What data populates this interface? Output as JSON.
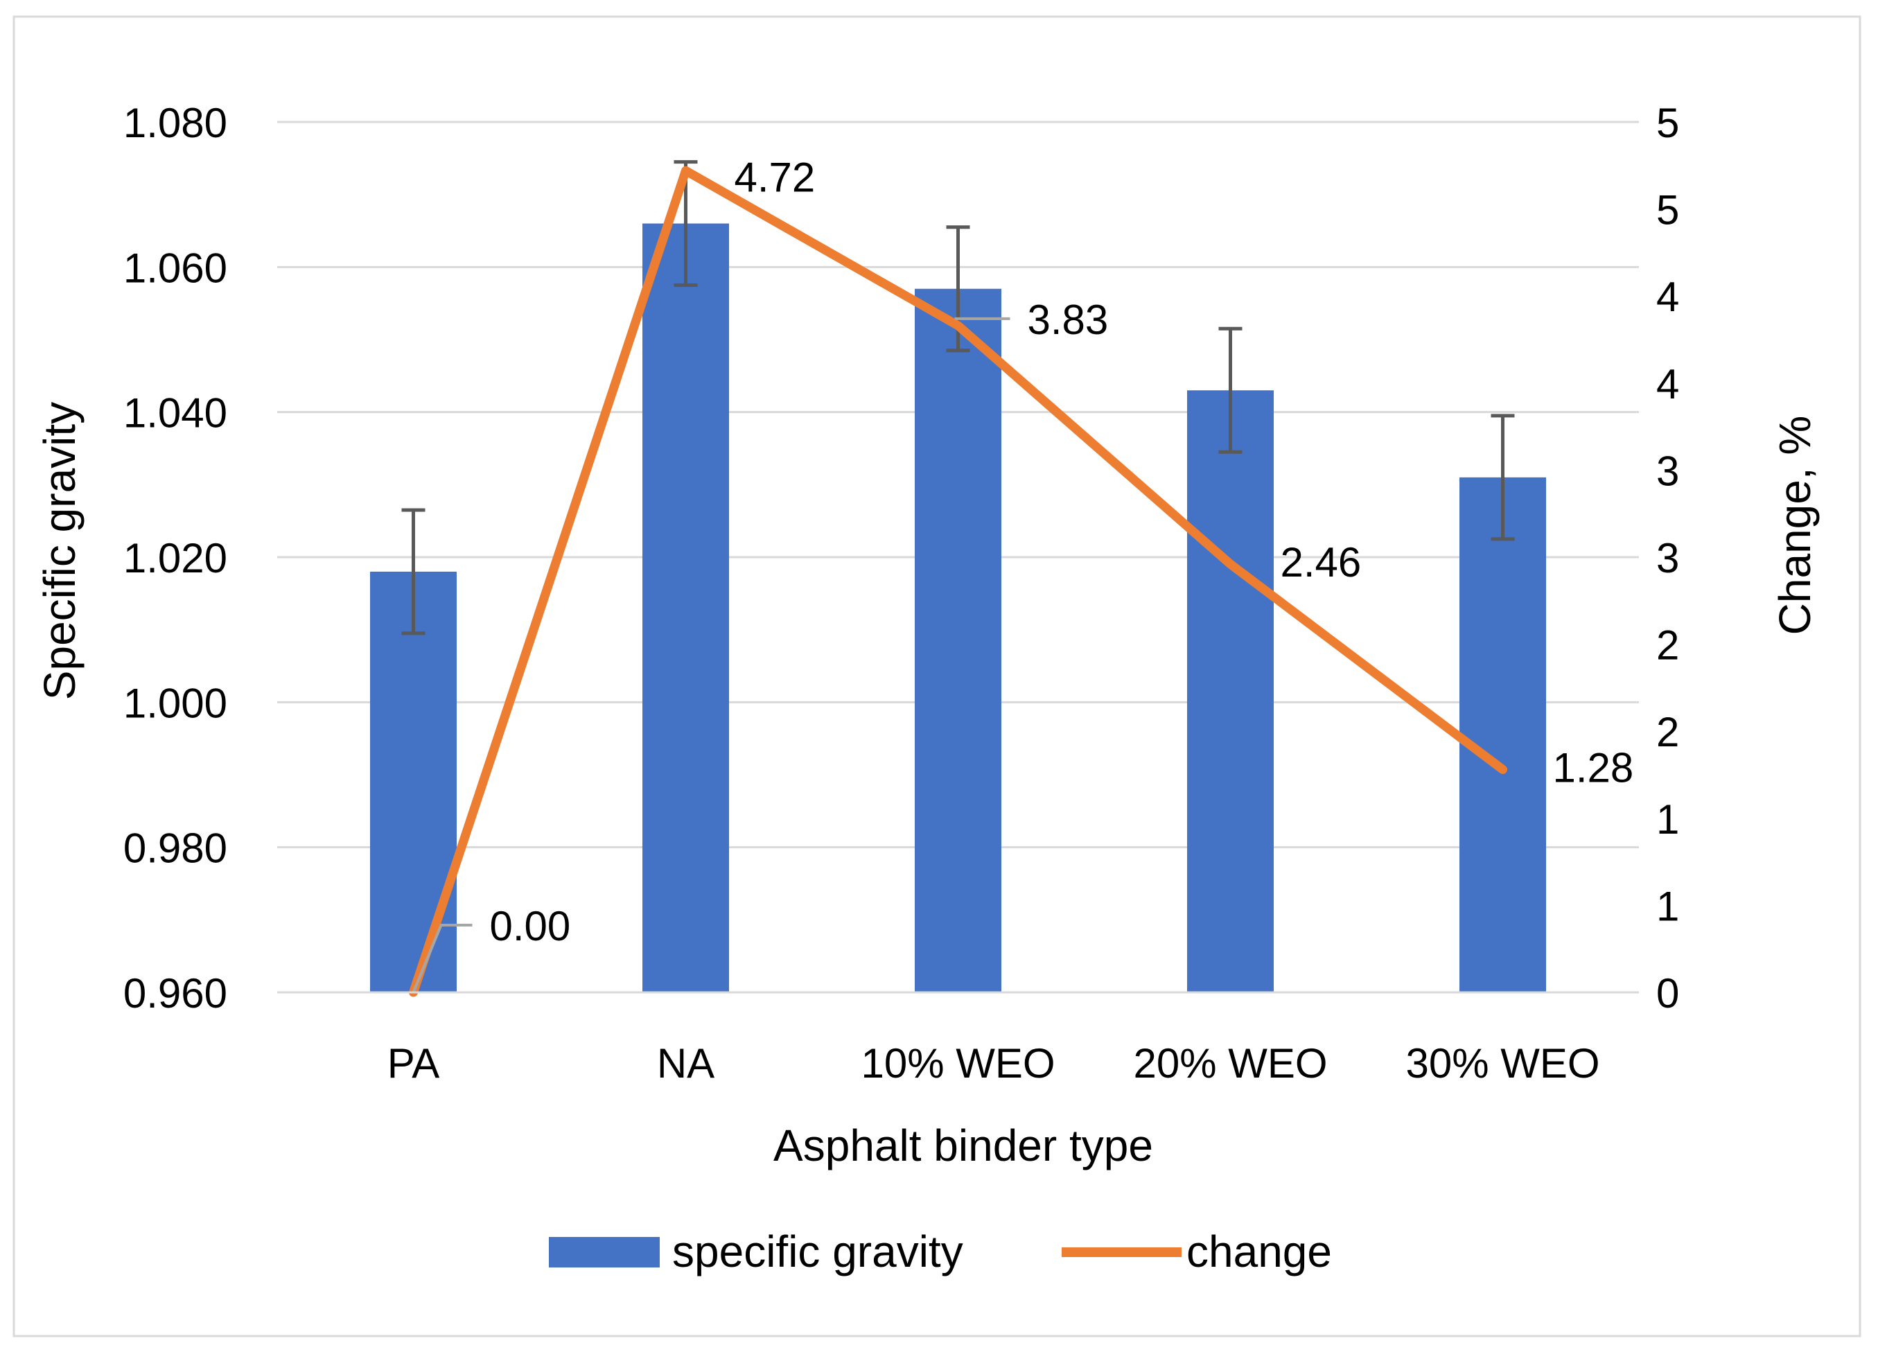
{
  "chart_data": {
    "type": "bar",
    "title": "",
    "xlabel": "Asphalt binder type",
    "ylabel": "Specific gravity",
    "y2label": "Change, %",
    "categories": [
      "PA",
      "NA",
      "10% WEO",
      "20% WEO",
      "30% WEO"
    ],
    "ylim": [
      0.96,
      1.08
    ],
    "y_ticks": [
      "0.960",
      "0.980",
      "1.000",
      "1.020",
      "1.040",
      "1.060",
      "1.080"
    ],
    "y2lim": [
      0,
      5
    ],
    "y2_ticks": [
      "0",
      "1",
      "1",
      "2",
      "2",
      "3",
      "3",
      "4",
      "4",
      "5",
      "5"
    ],
    "grid": true,
    "legend_position": "bottom",
    "series": [
      {
        "name": "specific gravity",
        "type": "bar",
        "axis": "left",
        "color": "#4472C4",
        "values": [
          1.018,
          1.066,
          1.057,
          1.043,
          1.031
        ],
        "error": [
          0.0085,
          0.0085,
          0.0085,
          0.0085,
          0.0085
        ]
      },
      {
        "name": "change",
        "type": "line",
        "axis": "right",
        "color": "#ED7D31",
        "values": [
          0.0,
          4.72,
          3.83,
          2.46,
          1.28
        ],
        "labels": [
          "0.00",
          "4.72",
          "3.83",
          "2.46",
          "1.28"
        ]
      }
    ]
  }
}
